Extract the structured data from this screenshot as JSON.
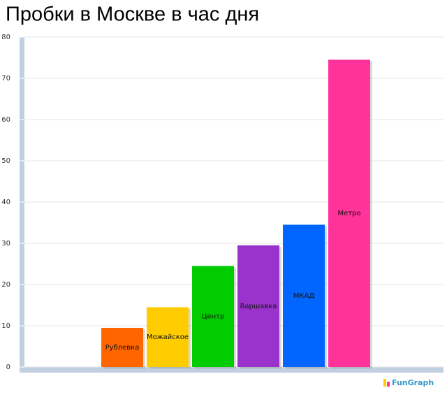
{
  "chart_data": {
    "type": "bar",
    "title": "Пробки в Москве в час дня",
    "categories": [
      "Рублевка",
      "Можайское",
      "Центр",
      "Варшавка",
      "МКАД",
      "Метро"
    ],
    "values": [
      9.5,
      14.5,
      24.5,
      29.5,
      34.5,
      74.5
    ],
    "colors": [
      "#ff6600",
      "#ffcc00",
      "#00cc00",
      "#9933cc",
      "#0066ff",
      "#ff3399"
    ],
    "ylim": [
      0,
      80
    ],
    "yticks": [
      0,
      10,
      20,
      30,
      40,
      50,
      60,
      70,
      80
    ],
    "grid": true,
    "logo": "FunGraph"
  }
}
